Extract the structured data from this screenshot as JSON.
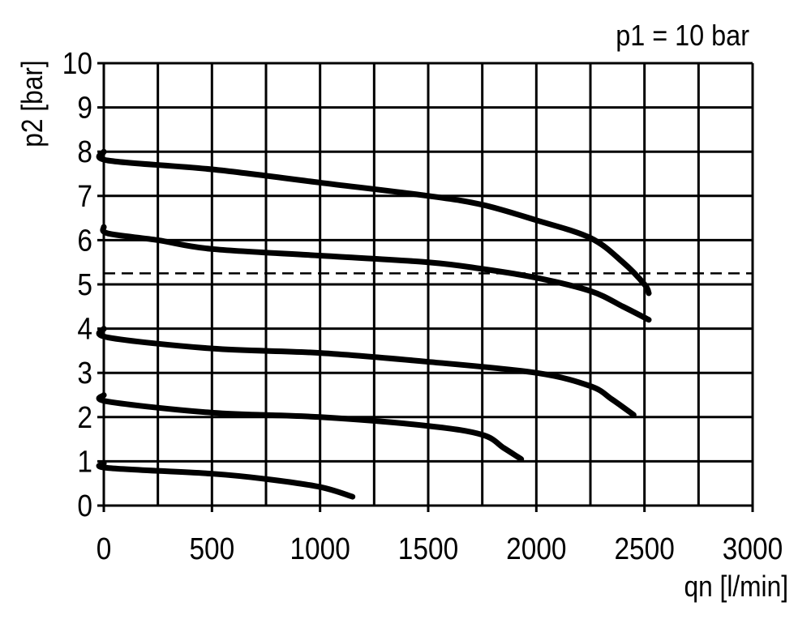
{
  "chart_data": {
    "type": "line",
    "title": "p1 = 10 bar",
    "xlabel": "qn [l/min]",
    "ylabel": "p2 [bar]",
    "xlim": [
      0,
      3000
    ],
    "ylim": [
      0,
      10
    ],
    "x_ticks": [
      0,
      500,
      1000,
      1500,
      2000,
      2500,
      3000
    ],
    "y_ticks": [
      0,
      1,
      2,
      3,
      4,
      5,
      6,
      7,
      8,
      9,
      10
    ],
    "grid": true,
    "grid_x_step": 250,
    "grid_y_step": 1,
    "line_color": "#000000",
    "series": [
      {
        "x": [
          0,
          20,
          500,
          1000,
          1500,
          1750,
          2000,
          2250,
          2400,
          2500,
          2520
        ],
        "y": [
          8.0,
          7.8,
          7.6,
          7.3,
          7.0,
          6.8,
          6.45,
          6.05,
          5.5,
          5.0,
          4.8
        ]
      },
      {
        "x": [
          0,
          20,
          250,
          500,
          1000,
          1500,
          1750,
          2000,
          2250,
          2400,
          2520
        ],
        "y": [
          6.3,
          6.15,
          6.0,
          5.8,
          5.65,
          5.5,
          5.35,
          5.15,
          4.85,
          4.5,
          4.2
        ]
      },
      {
        "x": [
          0,
          20,
          500,
          1000,
          1500,
          2000,
          2250,
          2350,
          2450
        ],
        "y": [
          4.0,
          3.8,
          3.55,
          3.45,
          3.25,
          3.0,
          2.7,
          2.4,
          2.05
        ]
      },
      {
        "x": [
          0,
          20,
          500,
          1000,
          1500,
          1750,
          1850,
          1930
        ],
        "y": [
          2.5,
          2.35,
          2.1,
          2.0,
          1.8,
          1.6,
          1.3,
          1.05
        ]
      },
      {
        "x": [
          0,
          20,
          500,
          750,
          1000,
          1150
        ],
        "y": [
          0.95,
          0.85,
          0.72,
          0.6,
          0.42,
          0.2
        ]
      }
    ],
    "reference_lines": [
      {
        "y": 5.25,
        "style": "dashed"
      }
    ]
  }
}
